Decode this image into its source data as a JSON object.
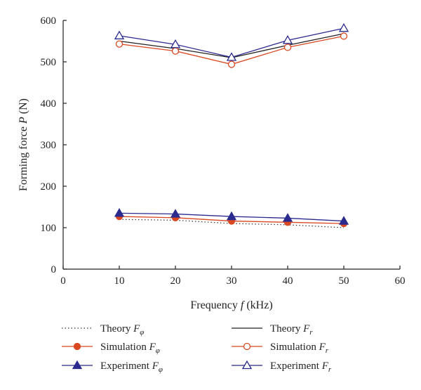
{
  "chart_data": {
    "type": "line",
    "x": [
      10,
      20,
      30,
      40,
      50
    ],
    "xlim": [
      0,
      60
    ],
    "ylim": [
      0,
      600
    ],
    "xticks": [
      "0",
      "10",
      "20",
      "30",
      "40",
      "50",
      "60"
    ],
    "yticks": [
      "0",
      "100",
      "200",
      "300",
      "400",
      "500",
      "600"
    ],
    "xlabel": {
      "prefix": "Frequency ",
      "var": "f",
      "suffix": " (kHz)"
    },
    "ylabel": {
      "prefix": "Forming force ",
      "var": "P",
      "suffix": " (N)"
    },
    "grid": false,
    "legend_position": "bottom",
    "series": [
      {
        "label": "Theory",
        "sub": "φ",
        "values": [
          120,
          118,
          110,
          107,
          100
        ],
        "color": "#333333",
        "style": "dotted",
        "marker": "none"
      },
      {
        "label": "Simulation",
        "sub": "φ",
        "values": [
          127,
          124,
          116,
          113,
          110
        ],
        "color": "#d94820",
        "style": "solid",
        "marker": "filled-circle"
      },
      {
        "label": "Experiment",
        "sub": "φ",
        "values": [
          135,
          133,
          127,
          123,
          116
        ],
        "color": "#2b2a8f",
        "style": "solid",
        "marker": "filled-triangle"
      },
      {
        "label": "Theory",
        "sub": "r",
        "values": [
          550,
          532,
          510,
          540,
          568
        ],
        "color": "#222222",
        "style": "solid",
        "marker": "none"
      },
      {
        "label": "Simulation",
        "sub": "r",
        "values": [
          543,
          526,
          494,
          535,
          562
        ],
        "color": "#d94820",
        "style": "solid",
        "marker": "open-circle"
      },
      {
        "label": "Experiment",
        "sub": "r",
        "values": [
          563,
          542,
          511,
          552,
          581
        ],
        "color": "#2b2a8f",
        "style": "solid",
        "marker": "open-triangle"
      }
    ]
  }
}
